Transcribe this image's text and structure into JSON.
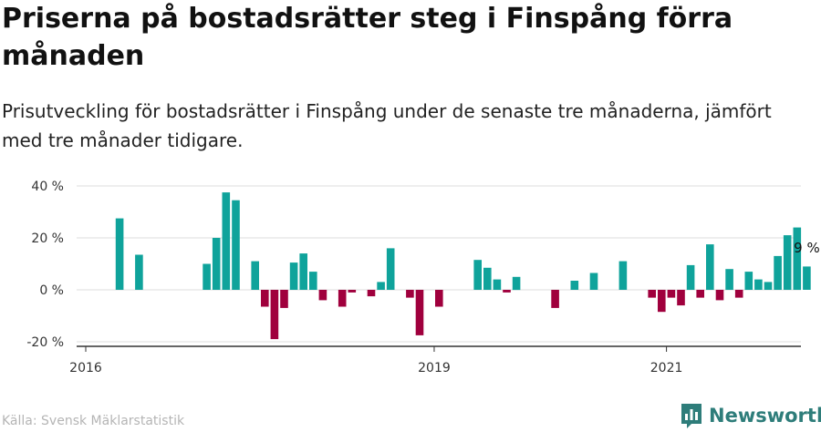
{
  "header": {
    "title": "Priserna på bostadsrätter steg i Finspång förra månaden",
    "subtitle": "Prisutveckling för bostadsrätter i Finspång under de senaste tre månaderna, jämfört med tre månader tidigare."
  },
  "footer": {
    "source": "Källa: Svensk Mäklarstatistik",
    "brand": "Newsworthy"
  },
  "colors": {
    "positive": "#0fa39b",
    "negative": "#a0003d",
    "grid": "#dddddd",
    "axis": "#333333",
    "brand": "#2e7d7a"
  },
  "icons": {
    "brand_logo": "newsworthy-logo-icon"
  },
  "chart_data": {
    "type": "bar",
    "title": "Prisutveckling för bostadsrätter i Finspång",
    "xlabel": "",
    "ylabel": "",
    "ylim": [
      -22,
      42
    ],
    "yticks": [
      {
        "value": 40,
        "label": "40 %"
      },
      {
        "value": 20,
        "label": "20 %"
      },
      {
        "value": 0,
        "label": "0 %"
      },
      {
        "value": -20,
        "label": "-20 %"
      }
    ],
    "x_start": "2016-01",
    "x_range_months": [
      0,
      86
    ],
    "xticks": [
      {
        "month_index": 0,
        "label": "2016"
      },
      {
        "month_index": 36,
        "label": "2019"
      },
      {
        "month_index": 60,
        "label": "2021"
      }
    ],
    "values": [
      null,
      null,
      null,
      27.5,
      null,
      13.5,
      null,
      null,
      null,
      null,
      null,
      null,
      10,
      20,
      37.5,
      34.5,
      null,
      11,
      -6.5,
      -19,
      -7,
      10.5,
      14,
      7,
      -4,
      null,
      -6.5,
      -1,
      null,
      -2.5,
      3,
      16,
      null,
      -3,
      -17.5,
      null,
      -6.5,
      null,
      null,
      null,
      11.5,
      8.5,
      4,
      -1,
      5,
      null,
      null,
      null,
      -7,
      null,
      3.5,
      null,
      6.5,
      null,
      null,
      11,
      null,
      null,
      -3,
      -8.5,
      -3,
      -6,
      9.5,
      -3,
      17.5,
      -4,
      8,
      -3,
      7,
      4,
      3,
      13,
      21,
      24,
      9
    ],
    "annotation": {
      "month_index": 74,
      "label": "9 %"
    }
  }
}
